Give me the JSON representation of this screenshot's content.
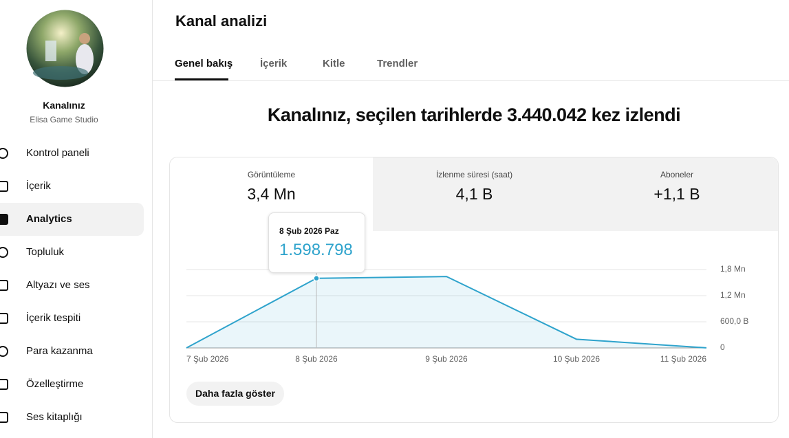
{
  "sidebar": {
    "channel_label": "Kanalınız",
    "channel_name": "Elisa Game Studio",
    "nav": [
      "Kontrol paneli",
      "İçerik",
      "Analytics",
      "Topluluk",
      "Altyazı ve ses",
      "İçerik tespiti",
      "Para kazanma",
      "Özelleştirme",
      "Ses kitaplığı"
    ]
  },
  "header": {
    "title": "Kanal analizi",
    "tabs": [
      "Genel bakış",
      "İçerik",
      "Kitle",
      "Trendler"
    ]
  },
  "headline": "Kanalınız, seçilen tarihlerde 3.440.042 kez izlendi",
  "metrics": [
    {
      "label": "Görüntüleme",
      "value": "3,4 Mn"
    },
    {
      "label": "İzlenme süresi (saat)",
      "value": "4,1 B"
    },
    {
      "label": "Aboneler",
      "value": "+1,1 B"
    }
  ],
  "chart_data": {
    "type": "area",
    "categories": [
      "7 Şub 2026",
      "8 Şub 2026",
      "9 Şub 2026",
      "10 Şub 2026",
      "11 Şub 2026"
    ],
    "values": [
      0,
      1598798,
      1640000,
      200000,
      1244
    ],
    "value_labels": [
      null,
      "1.598.798",
      null,
      null,
      null
    ],
    "annotation": "8 Şub 2026 Paz",
    "color": "#2ea3cc",
    "ylim": [
      0,
      1800000
    ],
    "yticks": [
      0,
      {
        "value": 600000,
        "label": "600,0 B"
      },
      {
        "value": 1200000,
        "label": "1,2 Mn"
      },
      {
        "value": 1800000,
        "label": "1,8 Mn"
      }
    ],
    "grid": true
  },
  "button": "Daha fazla göster"
}
